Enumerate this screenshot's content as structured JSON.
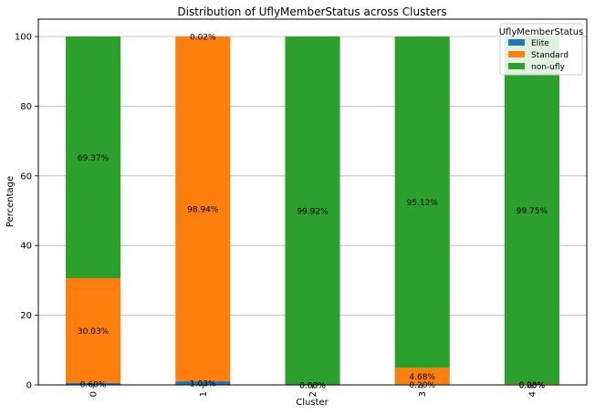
{
  "chart_data": {
    "type": "bar",
    "stacked": true,
    "title": "Distribution of UflyMemberStatus across Clusters",
    "xlabel": "Cluster",
    "ylabel": "Percentage",
    "categories": [
      "0",
      "1",
      "2",
      "3",
      "4"
    ],
    "ylim": [
      0,
      100
    ],
    "yticks": [
      0,
      20,
      40,
      60,
      80,
      100
    ],
    "grid": "y",
    "legend": {
      "title": "UflyMemberStatus",
      "position": "top-right"
    },
    "series": [
      {
        "name": "Elite",
        "color": "#1f77b4",
        "values": [
          0.6,
          1.03,
          0.0,
          0.2,
          0.0
        ],
        "labels": [
          "0.60%",
          "1.03%",
          "0.00%",
          "0.20%",
          "0.00%"
        ]
      },
      {
        "name": "Standard",
        "color": "#ff7f0e",
        "values": [
          30.03,
          98.94,
          0.08,
          4.68,
          0.25
        ],
        "labels": [
          "30.03%",
          "98.94%",
          "0.08%",
          "4.68%",
          "0.25%"
        ]
      },
      {
        "name": "non-ufly",
        "color": "#2ca02c",
        "values": [
          69.37,
          0.02,
          99.92,
          95.12,
          99.75
        ],
        "labels": [
          "69.37%",
          "0.02%",
          "99.92%",
          "95.12%",
          "99.75%"
        ]
      }
    ]
  }
}
